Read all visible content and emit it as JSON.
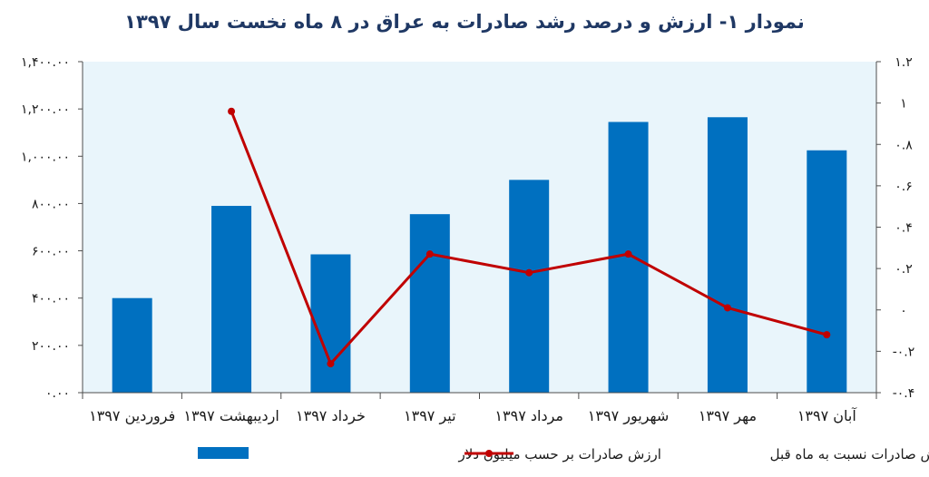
{
  "chart_data": {
    "type": "bar",
    "title": "نمودار ۱- ارزش و درصد رشد صادرات به عراق در ۸ ماه نخست سال ۱۳۹۷",
    "categories": [
      "فروردین ۱۳۹۷",
      "اردیبهشت ۱۳۹۷",
      "خرداد ۱۳۹۷",
      "تیر ۱۳۹۷",
      "مرداد ۱۳۹۷",
      "شهریور ۱۳۹۷",
      "مهر ۱۳۹۷",
      "آبان ۱۳۹۷"
    ],
    "series": [
      {
        "name": "ارزش صادرات بر حسب میلیون دلار",
        "type": "bar",
        "axis": "left",
        "color": "#0070c0",
        "values": [
          400,
          790,
          585,
          755,
          900,
          1145,
          1165,
          1025
        ]
      },
      {
        "name": "درصد رشد ارزش صادرات نسبت به ماه قبل",
        "type": "line",
        "axis": "right",
        "color": "#c00000",
        "values": [
          null,
          0.96,
          -0.26,
          0.27,
          0.18,
          0.27,
          0.01,
          -0.12
        ]
      }
    ],
    "y_left": {
      "lim": [
        0,
        1400
      ],
      "ticks": [
        0,
        200,
        400,
        600,
        800,
        1000,
        1200,
        1400
      ],
      "tick_labels": [
        "۰.۰۰",
        "۲۰۰.۰۰",
        "۴۰۰.۰۰",
        "۶۰۰.۰۰",
        "۸۰۰.۰۰",
        "۱,۰۰۰.۰۰",
        "۱,۲۰۰.۰۰",
        "۱,۴۰۰.۰۰"
      ]
    },
    "y_right": {
      "lim": [
        -0.4,
        1.2
      ],
      "ticks": [
        -0.4,
        -0.2,
        0,
        0.2,
        0.4,
        0.6,
        0.8,
        1,
        1.2
      ],
      "tick_labels": [
        "-۰.۴",
        "-۰.۲",
        "۰",
        "۰.۲",
        "۰.۴",
        "۰.۶",
        "۰.۸",
        "۱",
        "۱.۲"
      ]
    },
    "plot_background": "#e9f5fb",
    "legend_position": "bottom"
  }
}
